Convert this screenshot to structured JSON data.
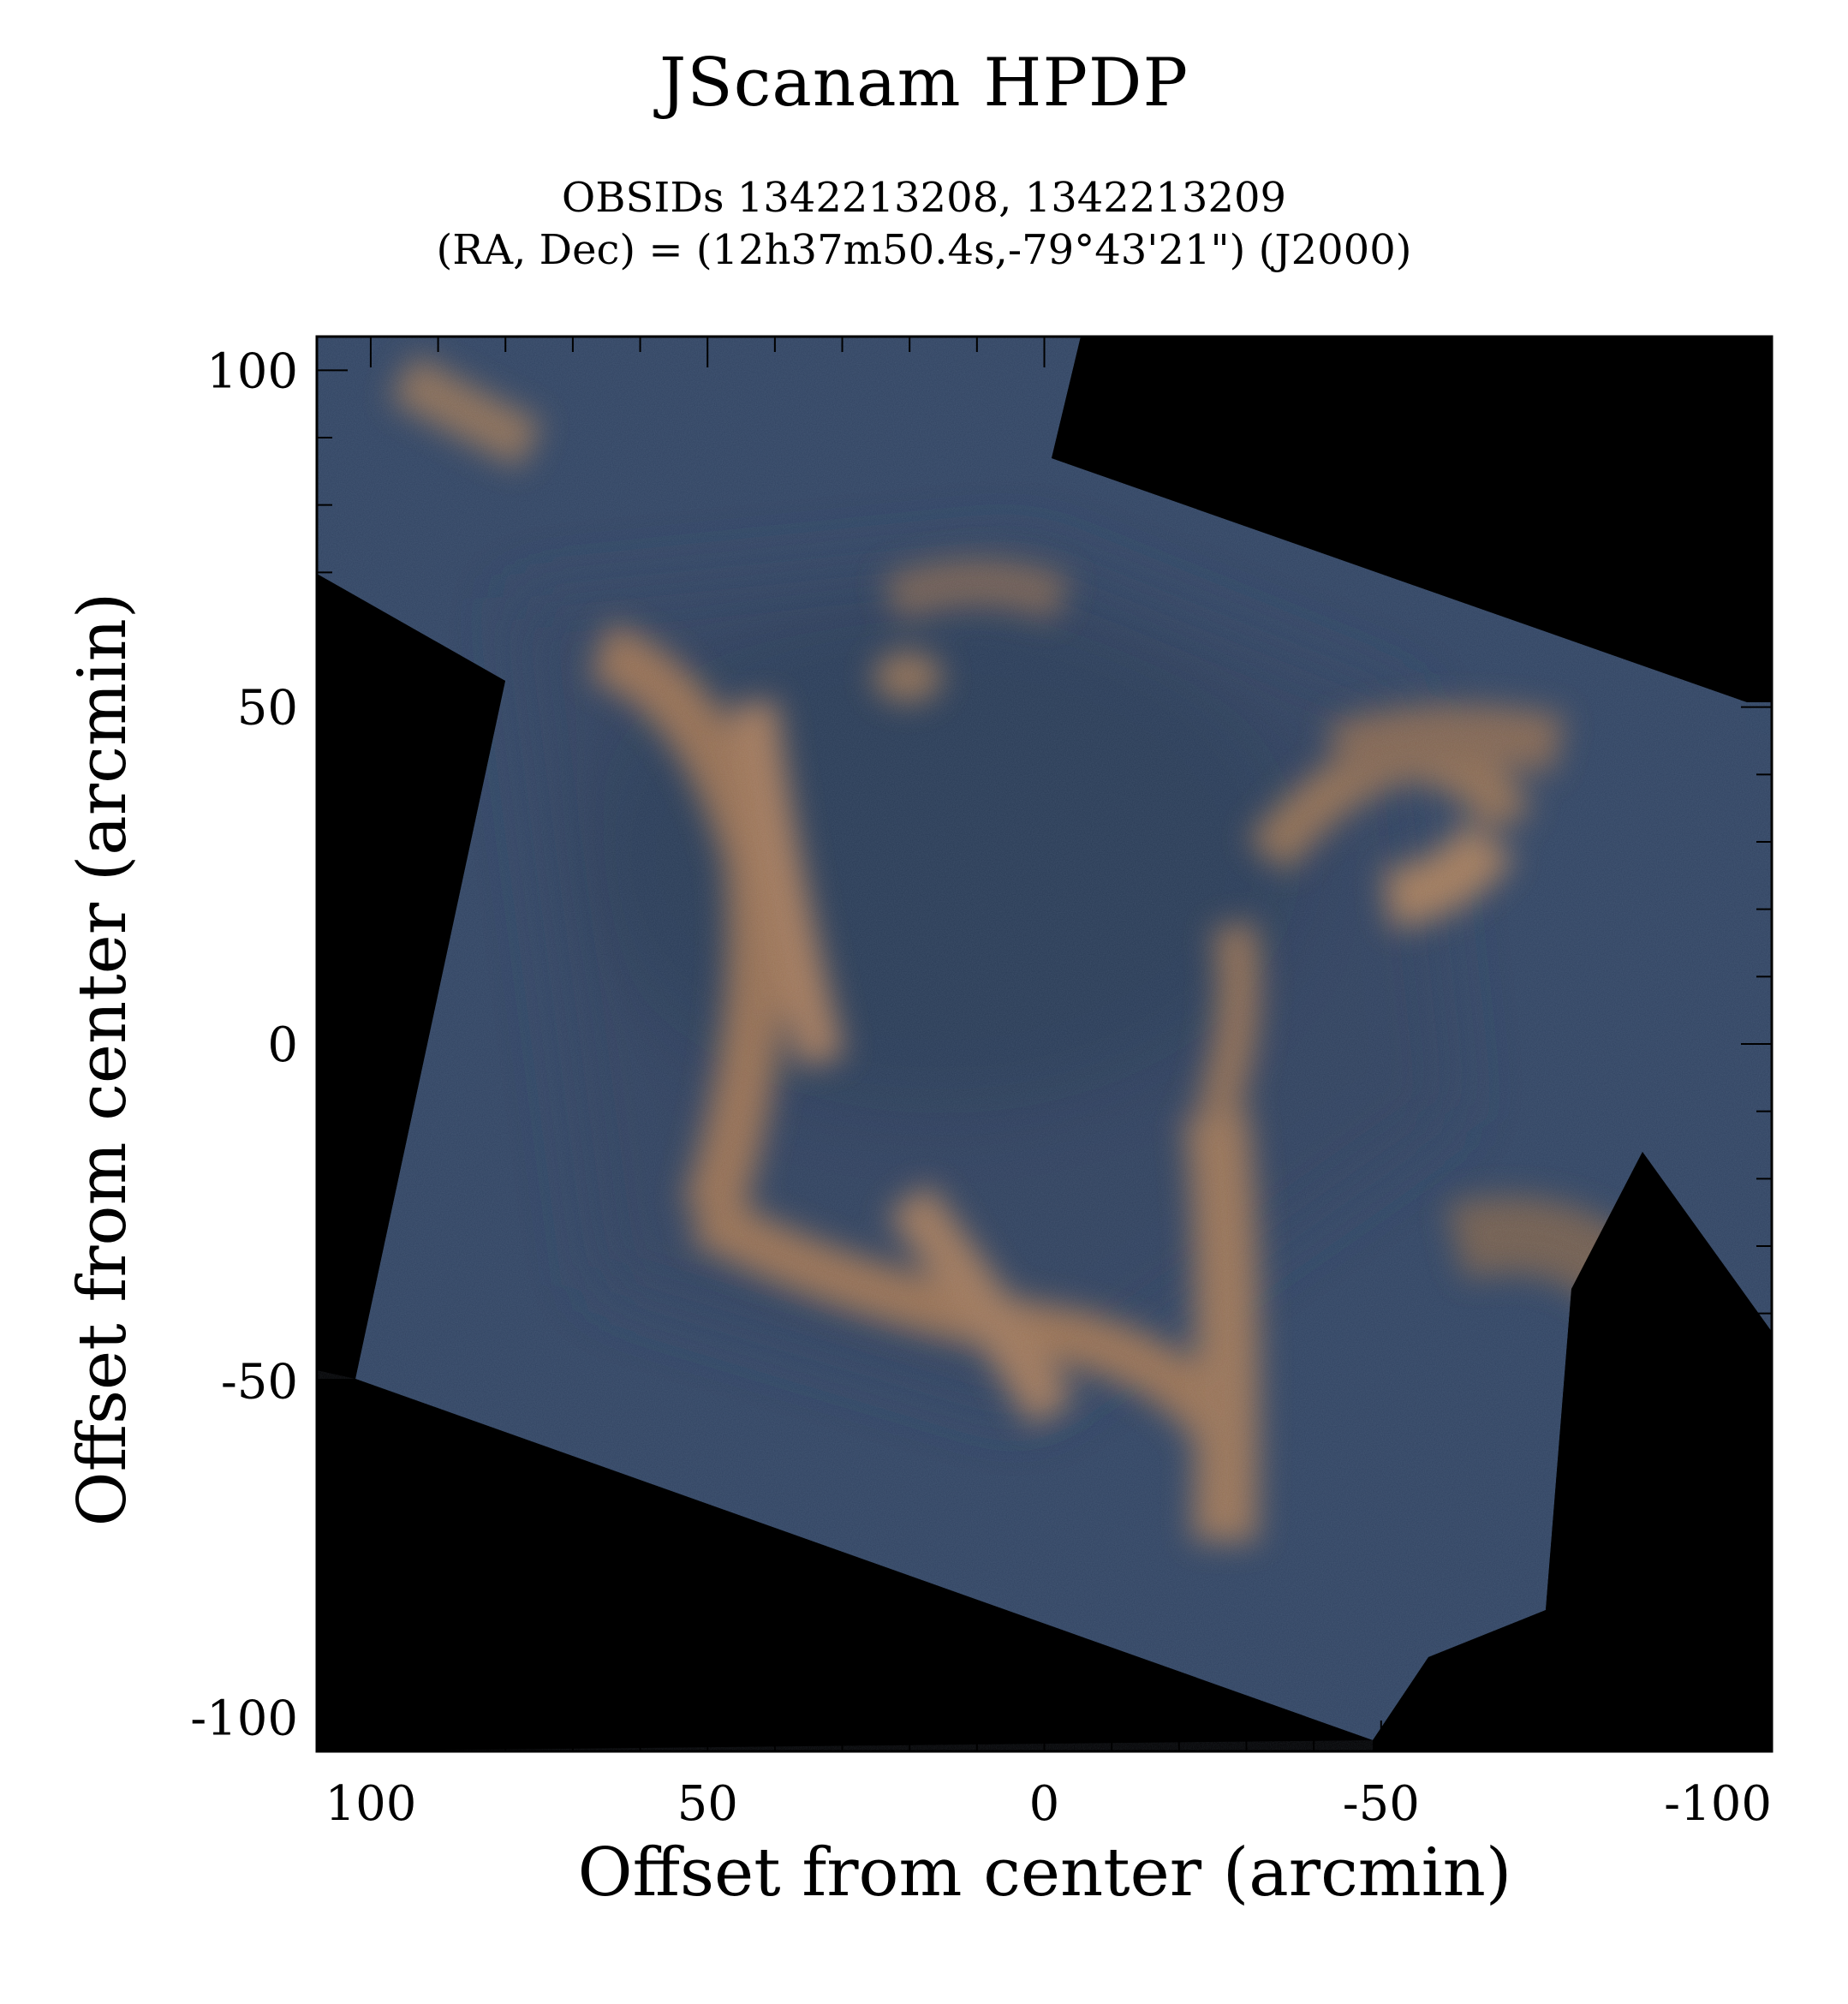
{
  "figure": {
    "title": "JScanam HPDP",
    "subtitle_line1": "OBSIDs 1342213208, 1342213209",
    "subtitle_line2": "(RA, Dec) = (12h37m50.4s,-79°43'21\") (J2000)",
    "xlabel": "Offset from center (arcmin)",
    "ylabel": "Offset from center (arcmin)"
  },
  "axes": {
    "x_range": [
      108,
      -108
    ],
    "y_range": [
      -105,
      105
    ],
    "x_ticks": [
      {
        "value": 100,
        "label": "100"
      },
      {
        "value": 50,
        "label": "50"
      },
      {
        "value": 0,
        "label": "0"
      },
      {
        "value": -50,
        "label": "-50"
      },
      {
        "value": -100,
        "label": "-100"
      }
    ],
    "y_ticks": [
      {
        "value": 100,
        "label": "100"
      },
      {
        "value": 50,
        "label": "50"
      },
      {
        "value": 0,
        "label": "0"
      },
      {
        "value": -50,
        "label": "-50"
      },
      {
        "value": -100,
        "label": "-100"
      }
    ],
    "minor_tick_step": 10
  },
  "colors": {
    "background": "#000000",
    "map_blue": "#2f4260",
    "map_orange": "#b9845a",
    "axis": "#000000"
  }
}
